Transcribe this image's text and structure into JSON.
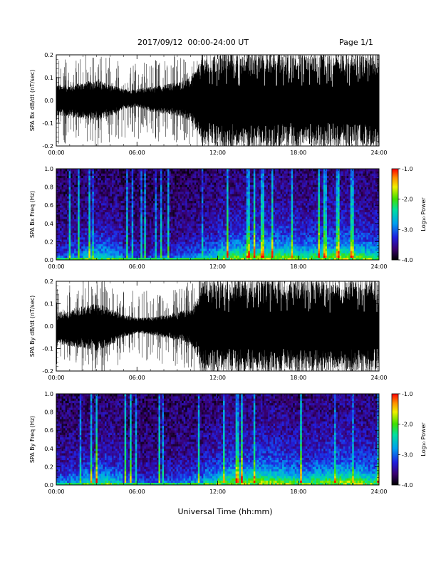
{
  "header": {
    "date_range": "2017/09/12  00:00-24:00 UT",
    "page": "Page 1/1"
  },
  "x_axis_title": "Universal Time (hh:mm)",
  "chart_data": [
    {
      "type": "line",
      "title": "",
      "ylabel": "SPA Bx dB/dt (nT/sec)",
      "xlabel": "",
      "xlim": [
        0,
        24
      ],
      "ylim": [
        -0.2,
        0.2
      ],
      "x_tick_labels": [
        "00:00",
        "06:00",
        "12:00",
        "18:00",
        "24:00"
      ],
      "y_ticks": [
        -0.2,
        -0.1,
        0.0,
        0.1,
        0.2
      ],
      "y_tick_labels": [
        "-0.2",
        "-0.1",
        "0.0",
        "0.1",
        "0.2"
      ],
      "color": "#000000",
      "envelope": {
        "hours": [
          0,
          1,
          2,
          3,
          4,
          5,
          6,
          7,
          8,
          9,
          10,
          10.5,
          11,
          12,
          13,
          14,
          15,
          16,
          17,
          18,
          19,
          20,
          21,
          22,
          23,
          24
        ],
        "upper": [
          0.07,
          0.07,
          0.08,
          0.09,
          0.07,
          0.05,
          0.05,
          0.06,
          0.07,
          0.08,
          0.1,
          0.15,
          0.2,
          0.2,
          0.2,
          0.2,
          0.2,
          0.2,
          0.2,
          0.2,
          0.2,
          0.2,
          0.2,
          0.2,
          0.2,
          0.2
        ],
        "lower": [
          -0.07,
          -0.07,
          -0.08,
          -0.09,
          -0.07,
          -0.04,
          -0.03,
          -0.05,
          -0.06,
          -0.07,
          -0.09,
          -0.15,
          -0.2,
          -0.2,
          -0.2,
          -0.2,
          -0.2,
          -0.2,
          -0.2,
          -0.2,
          -0.2,
          -0.2,
          -0.2,
          -0.2,
          -0.2,
          -0.2
        ]
      }
    },
    {
      "type": "heatmap",
      "title": "",
      "ylabel": "SPA Bx Freq (Hz)",
      "xlabel": "",
      "xlim": [
        0,
        24
      ],
      "ylim": [
        0.0,
        1.0
      ],
      "x_tick_labels": [
        "00:00",
        "06:00",
        "12:00",
        "18:00",
        "24:00"
      ],
      "y_ticks": [
        0.0,
        0.2,
        0.4,
        0.6,
        0.8,
        1.0
      ],
      "y_tick_labels": [
        "0.0",
        "0.2",
        "0.4",
        "0.6",
        "0.8",
        "1.0"
      ],
      "colorbar": {
        "label": "Log₁₀ Power",
        "range": [
          -4.0,
          -1.0
        ],
        "ticks": [
          -4.0,
          -3.0,
          -2.0,
          -1.0
        ],
        "tick_labels": [
          "-4.0",
          "-3.0",
          "-2.0",
          "-1.0"
        ]
      },
      "activity_by_hour": [
        0.35,
        0.4,
        0.55,
        0.6,
        0.5,
        0.3,
        0.25,
        0.3,
        0.3,
        0.35,
        0.4,
        0.55,
        0.75,
        0.8,
        0.8,
        0.85,
        0.85,
        0.8,
        0.7,
        0.75,
        0.8,
        0.85,
        0.8,
        0.7
      ]
    },
    {
      "type": "line",
      "title": "",
      "ylabel": "SPA By dB/dt (nT/sec)",
      "xlabel": "",
      "xlim": [
        0,
        24
      ],
      "ylim": [
        -0.2,
        0.2
      ],
      "x_tick_labels": [
        "00:00",
        "06:00",
        "12:00",
        "18:00",
        "24:00"
      ],
      "y_ticks": [
        -0.2,
        -0.1,
        0.0,
        0.1,
        0.2
      ],
      "y_tick_labels": [
        "-0.2",
        "-0.1",
        "0.0",
        "0.1",
        "0.2"
      ],
      "color": "#000000",
      "envelope": {
        "hours": [
          0,
          1,
          2,
          3,
          4,
          5,
          6,
          7,
          8,
          9,
          10,
          10.5,
          11,
          12,
          13,
          14,
          15,
          16,
          17,
          18,
          19,
          20,
          21,
          22,
          23,
          24
        ],
        "upper": [
          0.06,
          0.07,
          0.09,
          0.1,
          0.08,
          0.05,
          0.04,
          0.04,
          0.05,
          0.06,
          0.08,
          0.14,
          0.2,
          0.2,
          0.2,
          0.2,
          0.2,
          0.2,
          0.2,
          0.2,
          0.2,
          0.2,
          0.2,
          0.2,
          0.2,
          0.2
        ],
        "lower": [
          -0.08,
          -0.09,
          -0.1,
          -0.11,
          -0.09,
          -0.05,
          -0.03,
          -0.04,
          -0.05,
          -0.06,
          -0.08,
          -0.14,
          -0.2,
          -0.2,
          -0.2,
          -0.2,
          -0.2,
          -0.2,
          -0.2,
          -0.2,
          -0.2,
          -0.2,
          -0.2,
          -0.2,
          -0.2,
          -0.2
        ]
      }
    },
    {
      "type": "heatmap",
      "title": "",
      "ylabel": "SPA By Freq (Hz)",
      "xlabel": "",
      "xlim": [
        0,
        24
      ],
      "ylim": [
        0.0,
        1.0
      ],
      "x_tick_labels": [
        "00:00",
        "06:00",
        "12:00",
        "18:00",
        "24:00"
      ],
      "y_ticks": [
        0.0,
        0.2,
        0.4,
        0.6,
        0.8,
        1.0
      ],
      "y_tick_labels": [
        "0.0",
        "0.2",
        "0.4",
        "0.6",
        "0.8",
        "1.0"
      ],
      "colorbar": {
        "label": "Log₁₀ Power",
        "range": [
          -4.0,
          -1.0
        ],
        "ticks": [
          -4.0,
          -3.0,
          -2.0,
          -1.0
        ],
        "tick_labels": [
          "-4.0",
          "-3.0",
          "-2.0",
          "-1.0"
        ]
      },
      "activity_by_hour": [
        0.4,
        0.45,
        0.6,
        0.65,
        0.55,
        0.35,
        0.3,
        0.3,
        0.35,
        0.4,
        0.45,
        0.6,
        0.8,
        0.85,
        0.85,
        0.9,
        0.85,
        0.8,
        0.7,
        0.8,
        0.85,
        0.9,
        0.85,
        0.75
      ]
    }
  ]
}
